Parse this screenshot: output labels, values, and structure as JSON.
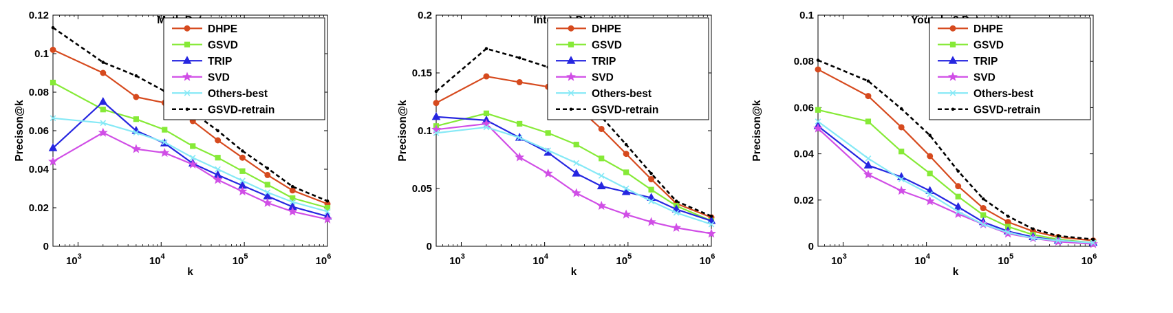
{
  "styles": {
    "DHPE": {
      "color": "#d64a1e",
      "marker": "circle",
      "dash": ""
    },
    "GSVD": {
      "color": "#86ea37",
      "marker": "square",
      "dash": ""
    },
    "TRIP": {
      "color": "#2626e0",
      "marker": "triangle",
      "dash": ""
    },
    "SVD": {
      "color": "#d04ee6",
      "marker": "star",
      "dash": ""
    },
    "Others-best": {
      "color": "#86e9f6",
      "marker": "x",
      "dash": ""
    },
    "GSVD-retrain": {
      "color": "#000000",
      "marker": "dot",
      "dash": "dashed"
    }
  },
  "chart_data": [
    {
      "type": "line",
      "title": "Math Dataset",
      "xlabel": "k",
      "ylabel": "Precison@k",
      "xscale": "log",
      "xlim": [
        500,
        1000000
      ],
      "ylim": [
        0,
        0.12
      ],
      "yticks": [
        "0",
        "0.02",
        "0.04",
        "0.06",
        "0.08",
        "0.1",
        "0.12"
      ],
      "xticks": [
        {
          "base": "10",
          "exp": "3"
        },
        {
          "base": "10",
          "exp": "4"
        },
        {
          "base": "10",
          "exp": "5"
        },
        {
          "base": "10",
          "exp": "6"
        }
      ],
      "legend_position": "top-right",
      "grid": false,
      "x": [
        500,
        2000,
        5000,
        11000,
        24000,
        48000,
        95000,
        190000,
        380000,
        1000000
      ],
      "series": [
        {
          "name": "DHPE",
          "values": [
            0.102,
            0.09,
            0.0775,
            0.0745,
            0.065,
            0.055,
            0.046,
            0.037,
            0.029,
            0.022
          ]
        },
        {
          "name": "GSVD",
          "values": [
            0.085,
            0.071,
            0.066,
            0.0605,
            0.052,
            0.046,
            0.039,
            0.032,
            0.025,
            0.02
          ]
        },
        {
          "name": "TRIP",
          "values": [
            0.051,
            0.075,
            0.06,
            0.0535,
            0.043,
            0.037,
            0.0315,
            0.026,
            0.0205,
            0.0155
          ]
        },
        {
          "name": "SVD",
          "values": [
            0.044,
            0.059,
            0.0505,
            0.0485,
            0.0425,
            0.0345,
            0.0285,
            0.0225,
            0.018,
            0.014
          ]
        },
        {
          "name": "Others-best",
          "values": [
            0.0665,
            0.064,
            0.059,
            0.054,
            0.046,
            0.04,
            0.034,
            0.028,
            0.023,
            0.018
          ]
        },
        {
          "name": "GSVD-retrain",
          "values": [
            0.1135,
            0.0955,
            0.0885,
            0.0805,
            0.0695,
            0.06,
            0.0495,
            0.0405,
            0.031,
            0.0235
          ]
        }
      ]
    },
    {
      "type": "line",
      "title": "Internet Dataset",
      "xlabel": "k",
      "ylabel": "Precison@k",
      "xscale": "log",
      "xlim": [
        500,
        1000000
      ],
      "ylim": [
        0,
        0.2
      ],
      "yticks": [
        "0",
        "0.05",
        "0.1",
        "0.15",
        "0.2"
      ],
      "xticks": [
        {
          "base": "10",
          "exp": "3"
        },
        {
          "base": "10",
          "exp": "4"
        },
        {
          "base": "10",
          "exp": "5"
        },
        {
          "base": "10",
          "exp": "6"
        }
      ],
      "legend_position": "top-right",
      "grid": false,
      "x": [
        500,
        2000,
        5000,
        11000,
        24000,
        48000,
        95000,
        190000,
        380000,
        1000000
      ],
      "series": [
        {
          "name": "DHPE",
          "values": [
            0.124,
            0.147,
            0.142,
            0.138,
            0.121,
            0.1015,
            0.08,
            0.058,
            0.037,
            0.025
          ]
        },
        {
          "name": "GSVD",
          "values": [
            0.104,
            0.115,
            0.106,
            0.098,
            0.088,
            0.076,
            0.064,
            0.049,
            0.035,
            0.022
          ]
        },
        {
          "name": "TRIP",
          "values": [
            0.112,
            0.109,
            0.094,
            0.081,
            0.063,
            0.052,
            0.047,
            0.042,
            0.032,
            0.022
          ]
        },
        {
          "name": "SVD",
          "values": [
            0.101,
            0.106,
            0.077,
            0.063,
            0.046,
            0.035,
            0.0275,
            0.021,
            0.016,
            0.011
          ]
        },
        {
          "name": "Others-best",
          "values": [
            0.098,
            0.103,
            0.094,
            0.083,
            0.072,
            0.061,
            0.05,
            0.039,
            0.029,
            0.019
          ]
        },
        {
          "name": "GSVD-retrain",
          "values": [
            0.134,
            0.171,
            0.163,
            0.155,
            0.139,
            0.112,
            0.088,
            0.063,
            0.039,
            0.026
          ]
        }
      ]
    },
    {
      "type": "line",
      "title": "Youtube2 Dataset",
      "xlabel": "k",
      "ylabel": "Precison@k",
      "xscale": "log",
      "xlim": [
        500,
        1000000
      ],
      "ylim": [
        0,
        0.1
      ],
      "yticks": [
        "0",
        "0.02",
        "0.04",
        "0.06",
        "0.08",
        "0.1"
      ],
      "xticks": [
        {
          "base": "10",
          "exp": "3"
        },
        {
          "base": "10",
          "exp": "4"
        },
        {
          "base": "10",
          "exp": "5"
        },
        {
          "base": "10",
          "exp": "6"
        }
      ],
      "legend_position": "top-right",
      "grid": false,
      "x": [
        500,
        2000,
        5000,
        11000,
        24000,
        48000,
        95000,
        190000,
        380000,
        1000000
      ],
      "series": [
        {
          "name": "DHPE",
          "values": [
            0.0765,
            0.065,
            0.0515,
            0.039,
            0.026,
            0.0165,
            0.0105,
            0.0065,
            0.004,
            0.0025
          ]
        },
        {
          "name": "GSVD",
          "values": [
            0.059,
            0.054,
            0.041,
            0.0315,
            0.0215,
            0.0135,
            0.0085,
            0.005,
            0.003,
            0.0015
          ]
        },
        {
          "name": "TRIP",
          "values": [
            0.052,
            0.035,
            0.03,
            0.024,
            0.017,
            0.0105,
            0.0065,
            0.004,
            0.0025,
            0.0015
          ]
        },
        {
          "name": "SVD",
          "values": [
            0.051,
            0.031,
            0.024,
            0.0195,
            0.014,
            0.0095,
            0.0055,
            0.0035,
            0.002,
            0.001
          ]
        },
        {
          "name": "Others-best",
          "values": [
            0.054,
            0.038,
            0.029,
            0.0225,
            0.015,
            0.0095,
            0.006,
            0.0035,
            0.0025,
            0.0015
          ]
        },
        {
          "name": "GSVD-retrain",
          "values": [
            0.0805,
            0.0715,
            0.0595,
            0.048,
            0.0325,
            0.0205,
            0.013,
            0.0075,
            0.0045,
            0.003
          ]
        }
      ]
    }
  ]
}
